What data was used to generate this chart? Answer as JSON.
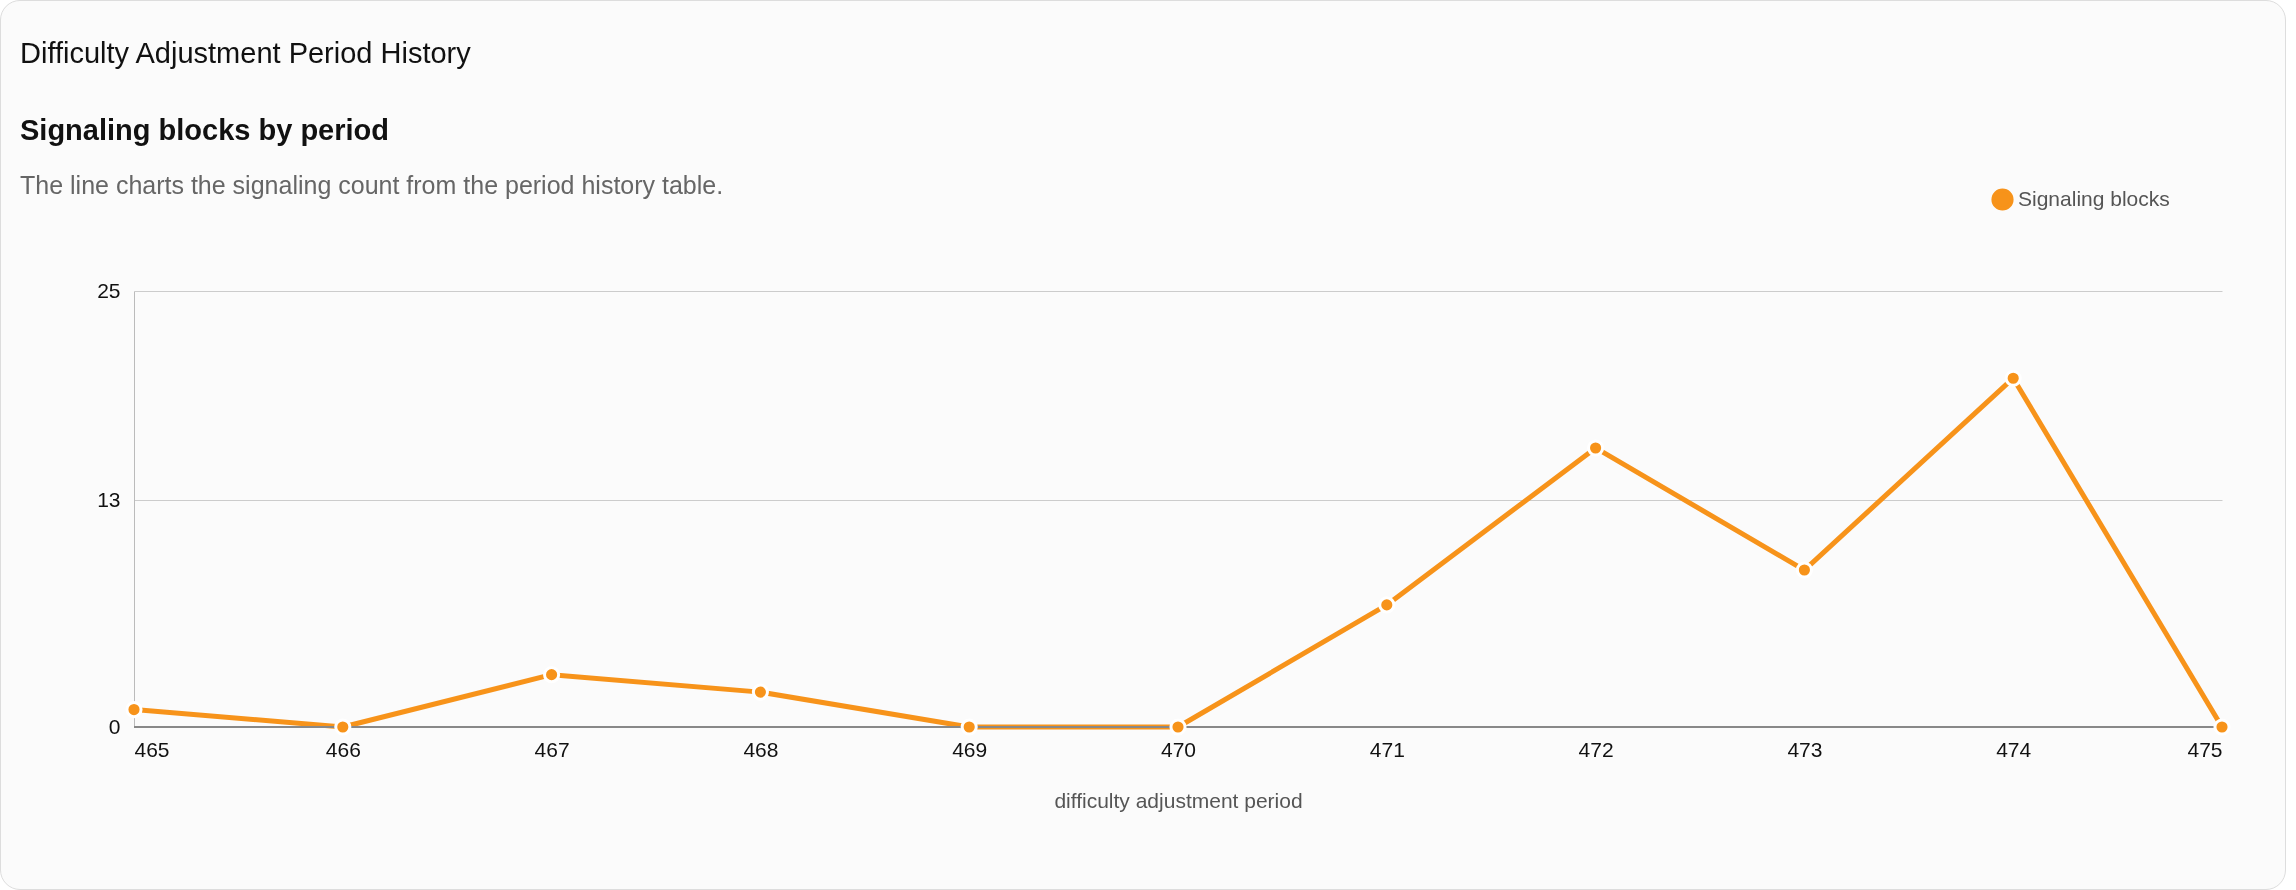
{
  "chart_data": {
    "type": "line",
    "title": "Difficulty Adjustment Period History",
    "subtitle": "Signaling blocks by period",
    "annotations": [
      "The line charts the signaling count from the period history table."
    ],
    "xlabel": "difficulty adjustment period",
    "x": [
      465,
      466,
      467,
      468,
      469,
      470,
      471,
      472,
      473,
      474,
      475
    ],
    "series": [
      {
        "name": "Signaling blocks",
        "color": "#f7931a",
        "values": [
          1,
          0,
          3,
          2,
          0,
          0,
          7,
          16,
          9,
          20,
          0
        ]
      }
    ],
    "xlim": [
      465,
      475
    ],
    "xticks": [
      465,
      466,
      467,
      468,
      469,
      470,
      471,
      472,
      473,
      474,
      475
    ],
    "ylim": [
      0,
      25
    ],
    "yticks": [
      0,
      13,
      25
    ],
    "grid": "y",
    "legend": "top right",
    "marker": "circle",
    "line_style": "solid"
  }
}
